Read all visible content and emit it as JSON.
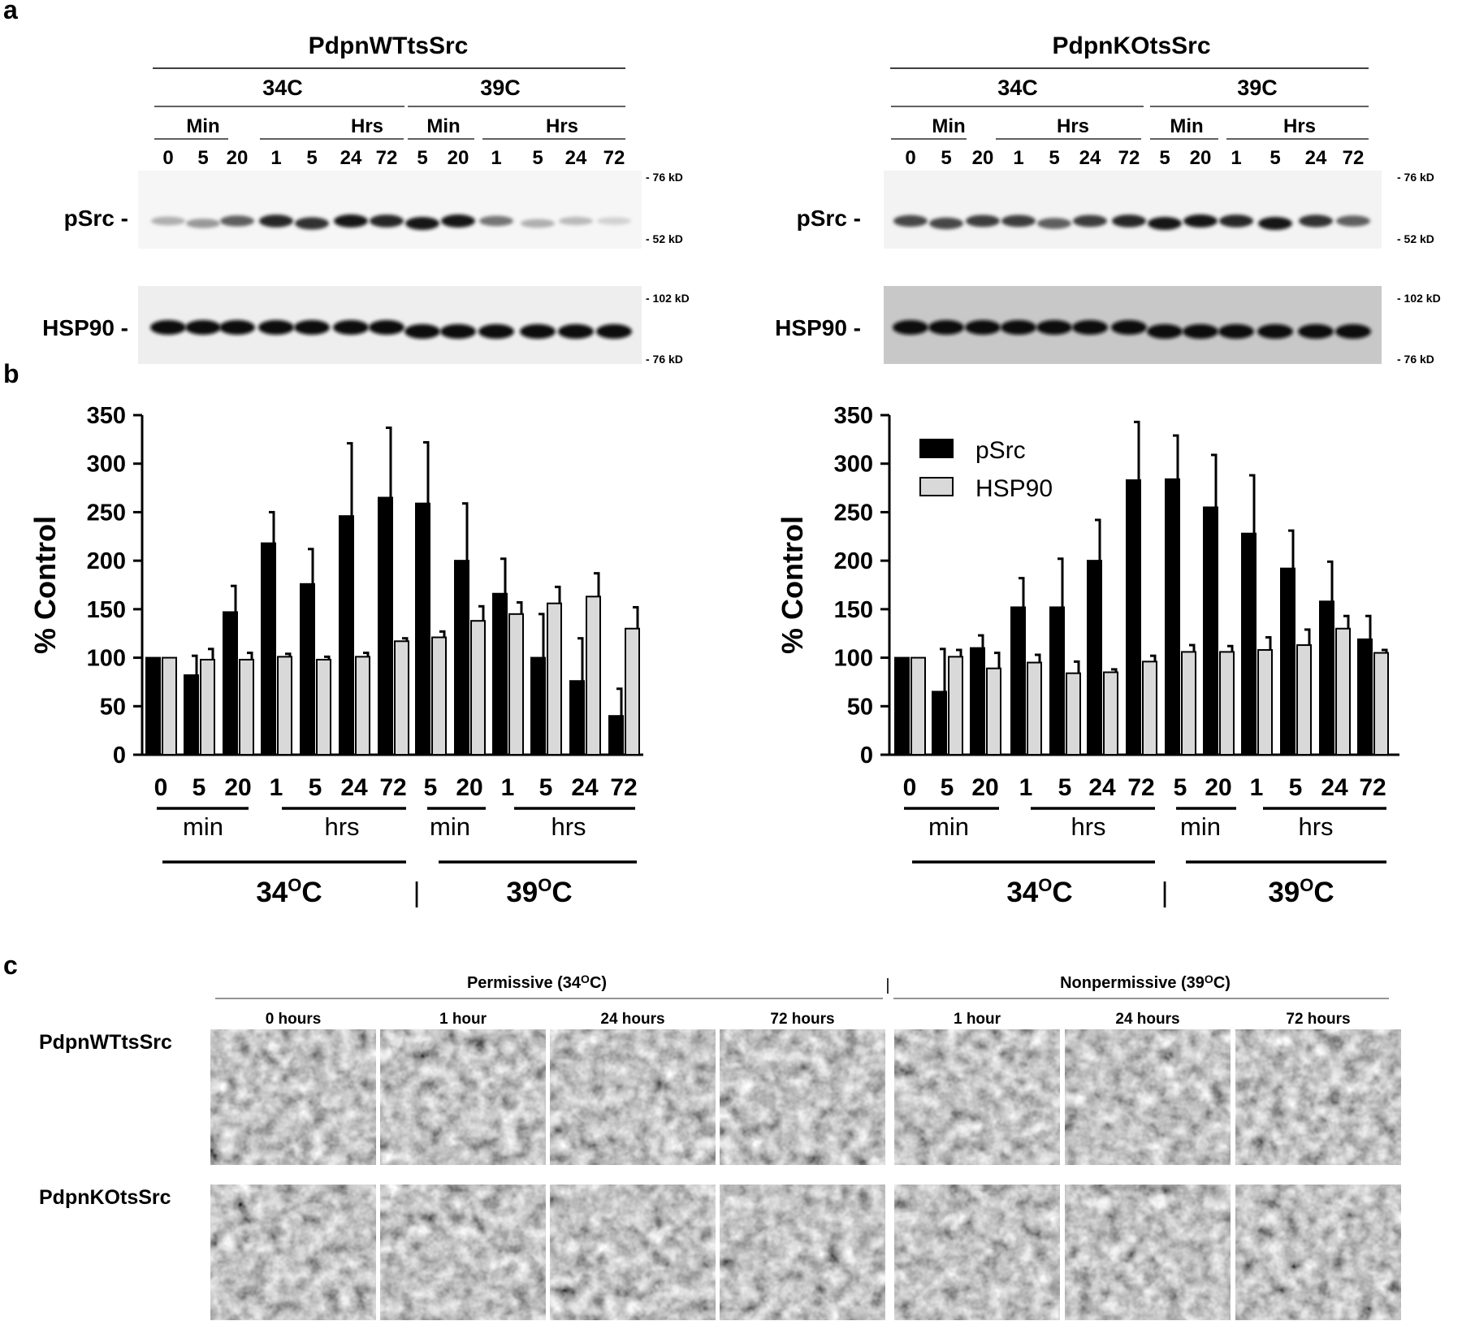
{
  "panel_labels": {
    "a": "a",
    "b": "b",
    "c": "c"
  },
  "blots": [
    {
      "id": "wt",
      "title": "PdpnWTtsSrc",
      "temps": [
        "34C",
        "39C"
      ],
      "time_groups": [
        "Min",
        "Hrs",
        "Min",
        "Hrs"
      ],
      "lanes": [
        "0",
        "5",
        "20",
        "1",
        "5",
        "24",
        "72",
        "5",
        "20",
        "1",
        "5",
        "24",
        "72"
      ],
      "row_labels": [
        "pSrc -",
        "HSP90 -"
      ],
      "markers_psrc": [
        "- 76 kD",
        "- 52 kD"
      ],
      "markers_hsp90": [
        "- 102 kD",
        "- 76 kD"
      ],
      "psrc_intensity": [
        0.35,
        0.45,
        0.7,
        0.95,
        0.9,
        1.0,
        0.95,
        1.0,
        1.0,
        0.6,
        0.35,
        0.3,
        0.2
      ],
      "hsp90_intensity": [
        1,
        1,
        1,
        1,
        1,
        1,
        1,
        1,
        1,
        1,
        1,
        1,
        1
      ]
    },
    {
      "id": "ko",
      "title": "PdpnKOtsSrc",
      "temps": [
        "34C",
        "39C"
      ],
      "time_groups": [
        "Min",
        "Hrs",
        "Min",
        "Hrs"
      ],
      "lanes": [
        "0",
        "5",
        "20",
        "1",
        "5",
        "24",
        "72",
        "5",
        "20",
        "1",
        "5",
        "24",
        "72"
      ],
      "row_labels": [
        "pSrc -",
        "HSP90 -"
      ],
      "markers_psrc": [
        "- 76 kD",
        "- 52 kD"
      ],
      "markers_hsp90": [
        "- 102 kD",
        "- 76 kD"
      ],
      "psrc_intensity": [
        0.8,
        0.8,
        0.85,
        0.85,
        0.7,
        0.85,
        0.95,
        1.0,
        1.0,
        0.95,
        1.0,
        0.9,
        0.7
      ],
      "hsp90_intensity": [
        1,
        1,
        1,
        1,
        1,
        1,
        1,
        1,
        1,
        1,
        1,
        1,
        1
      ]
    }
  ],
  "chart_data": [
    {
      "type": "bar",
      "categories": [
        "0",
        "5",
        "20",
        "1",
        "5",
        "24",
        "72",
        "5",
        "20",
        "1",
        "5",
        "24",
        "72"
      ],
      "ylabel": "% Control",
      "ylim": [
        0,
        350
      ],
      "yticks": [
        "0",
        "50",
        "100",
        "150",
        "200",
        "250",
        "300",
        "350"
      ],
      "group_labels": [
        "min",
        "hrs",
        "min",
        "hrs"
      ],
      "temp_labels": [
        "34",
        "O",
        "C",
        "39",
        "O",
        "C"
      ],
      "separator": "|",
      "series": [
        {
          "name": "pSrc",
          "color": "#000000",
          "values": [
            100,
            82,
            147,
            218,
            176,
            246,
            265,
            259,
            200,
            166,
            100,
            76,
            40
          ],
          "errors": [
            0,
            20,
            27,
            32,
            36,
            75,
            72,
            63,
            59,
            36,
            45,
            44,
            28
          ]
        },
        {
          "name": "HSP90",
          "color": "#d9d9d9",
          "values": [
            100,
            98,
            98,
            101,
            98,
            101,
            117,
            121,
            138,
            145,
            156,
            163,
            130
          ],
          "errors": [
            0,
            11,
            7,
            3,
            3,
            4,
            3,
            6,
            15,
            12,
            17,
            24,
            22
          ]
        }
      ]
    },
    {
      "type": "bar",
      "categories": [
        "0",
        "5",
        "20",
        "1",
        "5",
        "24",
        "72",
        "5",
        "20",
        "1",
        "5",
        "24",
        "72"
      ],
      "ylabel": "% Control",
      "ylim": [
        0,
        350
      ],
      "yticks": [
        "0",
        "50",
        "100",
        "150",
        "200",
        "250",
        "300",
        "350"
      ],
      "group_labels": [
        "min",
        "hrs",
        "min",
        "hrs"
      ],
      "temp_labels": [
        "34",
        "O",
        "C",
        "39",
        "O",
        "C"
      ],
      "separator": "|",
      "legend": [
        "pSrc",
        "HSP90"
      ],
      "series": [
        {
          "name": "pSrc",
          "color": "#000000",
          "values": [
            100,
            65,
            110,
            152,
            152,
            200,
            283,
            284,
            255,
            228,
            192,
            158,
            119
          ],
          "errors": [
            0,
            44,
            13,
            30,
            50,
            42,
            60,
            45,
            54,
            60,
            39,
            41,
            24
          ]
        },
        {
          "name": "HSP90",
          "color": "#d9d9d9",
          "values": [
            100,
            101,
            89,
            95,
            84,
            85,
            96,
            106,
            106,
            108,
            113,
            130,
            105
          ],
          "errors": [
            0,
            7,
            16,
            8,
            12,
            3,
            6,
            7,
            6,
            13,
            16,
            13,
            3
          ]
        }
      ]
    }
  ],
  "micrographs": {
    "group_labels": [
      "Permissive (34",
      "O",
      "C)",
      "Nonpermissive (39",
      "O",
      "C)"
    ],
    "separator": "|",
    "columns": [
      "0 hours",
      "1 hour",
      "24 hours",
      "72 hours",
      "1 hour",
      "24 hours",
      "72 hours"
    ],
    "rows": [
      "PdpnWTtsSrc",
      "PdpnKOtsSrc"
    ]
  }
}
